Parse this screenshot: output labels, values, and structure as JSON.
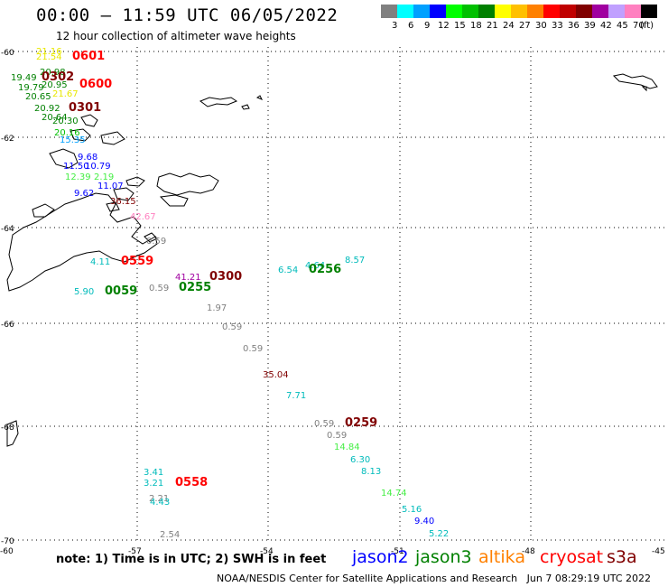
{
  "title": "00:00 – 11:59 UTC 06/05/2022",
  "subtitle": "12 hour collection of altimeter wave heights",
  "colorbar": {
    "labels": [
      "3",
      "6",
      "9",
      "12",
      "15",
      "18",
      "21",
      "24",
      "27",
      "30",
      "33",
      "36",
      "39",
      "42",
      "45",
      "70",
      "(ft)"
    ],
    "colors": [
      "#808080",
      "#00ffff",
      "#00a0ff",
      "#0000ff",
      "#00ff00",
      "#00c000",
      "#008000",
      "#ffff00",
      "#ffc000",
      "#ff8000",
      "#ff0000",
      "#c00000",
      "#800000",
      "#a000a0",
      "#c0a0ff",
      "#ff80c0",
      "#000000"
    ]
  },
  "axes": {
    "lat_labels": [
      "-60",
      "-62",
      "-64",
      "-66",
      "-68",
      "-70"
    ],
    "lon_labels": [
      "-60",
      "-57",
      "-54",
      "-51",
      "-48",
      "-45"
    ]
  },
  "observations": [
    {
      "text": "21.16",
      "color": "#e8e800"
    },
    {
      "text": "21.54",
      "color": "#e8e800"
    },
    {
      "text": "0601",
      "color": "#ff0000"
    },
    {
      "text": "20.98",
      "color": "#008000"
    },
    {
      "text": "19.49",
      "color": "#008000"
    },
    {
      "text": "0302",
      "color": "#800000"
    },
    {
      "text": "19.79",
      "color": "#008000"
    },
    {
      "text": "20.95",
      "color": "#008000"
    },
    {
      "text": "0600",
      "color": "#ff0000"
    },
    {
      "text": "20.65",
      "color": "#008000"
    },
    {
      "text": "21.67",
      "color": "#e8e800"
    },
    {
      "text": "20.92",
      "color": "#008000"
    },
    {
      "text": "0301",
      "color": "#800000"
    },
    {
      "text": "20.64",
      "color": "#008000"
    },
    {
      "text": "20.30",
      "color": "#008000"
    },
    {
      "text": "20.16",
      "color": "#00c000"
    },
    {
      "text": "15.35",
      "color": "#00a0ff"
    },
    {
      "text": "9.68",
      "color": "#0000ff"
    },
    {
      "text": "11.50",
      "color": "#0000ff"
    },
    {
      "text": "10.79",
      "color": "#0000ff"
    },
    {
      "text": "12.39",
      "color": "#44ee44"
    },
    {
      "text": "2.19",
      "color": "#44ee44"
    },
    {
      "text": "11.07",
      "color": "#0000ff"
    },
    {
      "text": "9.62",
      "color": "#0000ff"
    },
    {
      "text": "36.15",
      "color": "#800000"
    },
    {
      "text": "42.67",
      "color": "#ff80c0"
    },
    {
      "text": "0.59",
      "color": "#808080"
    },
    {
      "text": "4.11",
      "color": "#00bbbb"
    },
    {
      "text": "0559",
      "color": "#ff0000"
    },
    {
      "text": "8.57",
      "color": "#00bbbb"
    },
    {
      "text": "4.64",
      "color": "#00bbbb"
    },
    {
      "text": "6.54",
      "color": "#00bbbb"
    },
    {
      "text": "0256",
      "color": "#008000"
    },
    {
      "text": "41.21",
      "color": "#a000a0"
    },
    {
      "text": "0300",
      "color": "#800000"
    },
    {
      "text": "0.59",
      "color": "#808080"
    },
    {
      "text": "0255",
      "color": "#008000"
    },
    {
      "text": "5.90",
      "color": "#00bbbb"
    },
    {
      "text": "0059",
      "color": "#008000"
    },
    {
      "text": "1.97",
      "color": "#808080"
    },
    {
      "text": "0.59",
      "color": "#808080"
    },
    {
      "text": "0.59",
      "color": "#808080"
    },
    {
      "text": "35.04",
      "color": "#800000"
    },
    {
      "text": "7.71",
      "color": "#00bbbb"
    },
    {
      "text": "0.59",
      "color": "#808080"
    },
    {
      "text": "0259",
      "color": "#800000"
    },
    {
      "text": "0.59",
      "color": "#808080"
    },
    {
      "text": "14.84",
      "color": "#44ee44"
    },
    {
      "text": "6.30",
      "color": "#00bbbb"
    },
    {
      "text": "8.13",
      "color": "#00bbbb"
    },
    {
      "text": "3.41",
      "color": "#00bbbb"
    },
    {
      "text": "3.21",
      "color": "#00bbbb"
    },
    {
      "text": "0558",
      "color": "#ff0000"
    },
    {
      "text": "2.21",
      "color": "#808080"
    },
    {
      "text": "4.43",
      "color": "#00bbbb"
    },
    {
      "text": "14.74",
      "color": "#44ee44"
    },
    {
      "text": "5.16",
      "color": "#00bbbb"
    },
    {
      "text": "9.40",
      "color": "#0000ff"
    },
    {
      "text": "5.22",
      "color": "#00bbbb"
    },
    {
      "text": "2.54",
      "color": "#808080"
    }
  ],
  "note": "note: 1) Time is in UTC; 2) SWH is in feet",
  "satellites": [
    {
      "name": "jason2",
      "color": "#0000ff"
    },
    {
      "name": "jason3",
      "color": "#008000"
    },
    {
      "name": "altika",
      "color": "#ff8000"
    },
    {
      "name": "cryosat",
      "color": "#ff0000"
    },
    {
      "name": "s3a",
      "color": "#800000"
    }
  ],
  "credit": "NOAA/NESDIS Center for Satellite Applications and Research",
  "timestamp": "Jun  7 08:29:19 UTC 2022"
}
